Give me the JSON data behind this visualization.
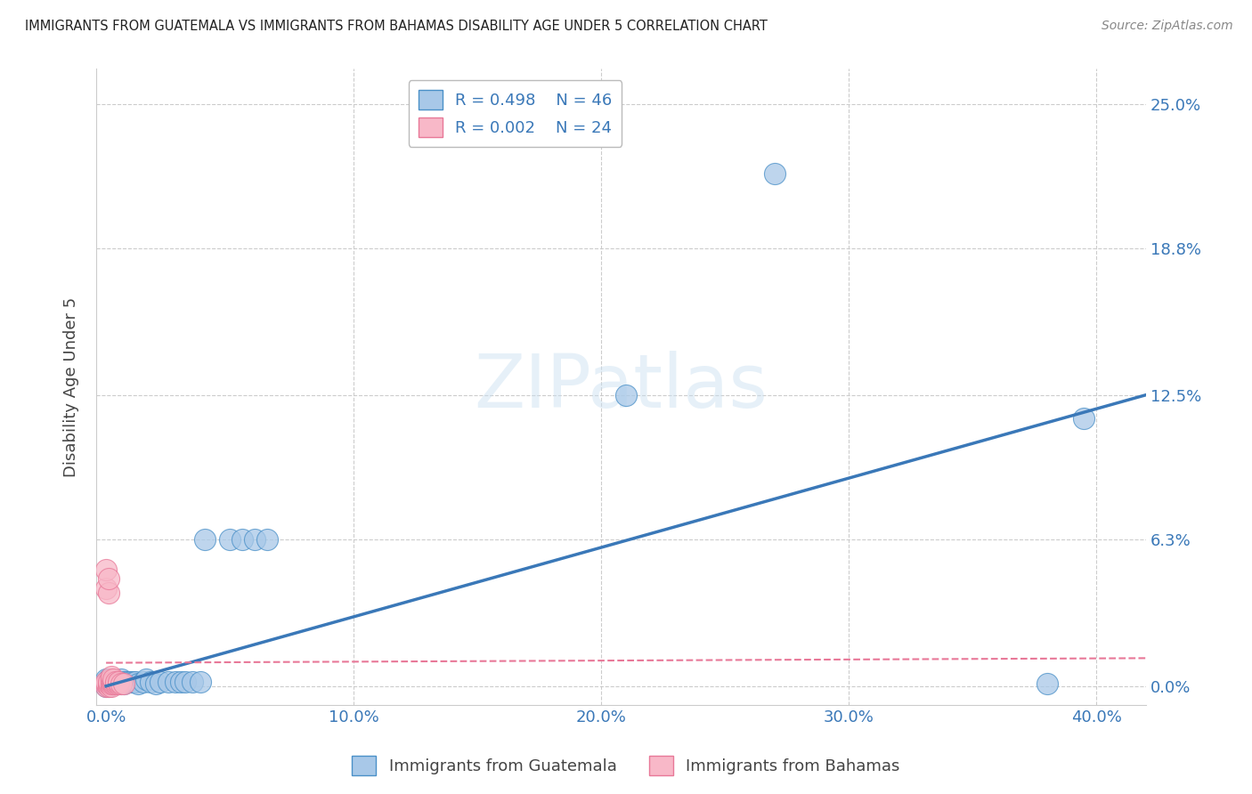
{
  "title": "IMMIGRANTS FROM GUATEMALA VS IMMIGRANTS FROM BAHAMAS DISABILITY AGE UNDER 5 CORRELATION CHART",
  "source": "Source: ZipAtlas.com",
  "xlabel_ticks": [
    "0.0%",
    "10.0%",
    "20.0%",
    "30.0%",
    "40.0%"
  ],
  "xlabel_tick_vals": [
    0.0,
    0.1,
    0.2,
    0.3,
    0.4
  ],
  "ylabel": "Disability Age Under 5",
  "ylabel_ticks": [
    "0.0%",
    "6.3%",
    "12.5%",
    "18.8%",
    "25.0%"
  ],
  "ylabel_tick_vals": [
    0.0,
    0.063,
    0.125,
    0.188,
    0.25
  ],
  "xlim": [
    -0.004,
    0.42
  ],
  "ylim": [
    -0.008,
    0.265
  ],
  "legend_r_blue": "R = 0.498",
  "legend_n_blue": "N = 46",
  "legend_r_pink": "R = 0.002",
  "legend_n_pink": "N = 24",
  "color_blue": "#a8c8e8",
  "color_blue_dark": "#4a90c8",
  "color_blue_line": "#3a78b8",
  "color_pink": "#f8b8c8",
  "color_pink_dark": "#e87898",
  "color_pink_line": "#e87898",
  "watermark": "ZIPatlas",
  "guatemala_x": [
    0.0,
    0.0,
    0.0,
    0.0,
    0.001,
    0.001,
    0.001,
    0.002,
    0.002,
    0.002,
    0.003,
    0.003,
    0.004,
    0.004,
    0.005,
    0.005,
    0.006,
    0.006,
    0.007,
    0.007,
    0.008,
    0.009,
    0.01,
    0.011,
    0.012,
    0.013,
    0.015,
    0.016,
    0.018,
    0.02,
    0.022,
    0.025,
    0.028,
    0.03,
    0.032,
    0.035,
    0.038,
    0.04,
    0.05,
    0.055,
    0.06,
    0.065,
    0.21,
    0.27,
    0.38,
    0.395
  ],
  "guatemala_y": [
    0.0,
    0.001,
    0.002,
    0.003,
    0.0,
    0.001,
    0.003,
    0.001,
    0.002,
    0.003,
    0.001,
    0.002,
    0.001,
    0.002,
    0.001,
    0.002,
    0.001,
    0.003,
    0.001,
    0.002,
    0.002,
    0.002,
    0.002,
    0.002,
    0.002,
    0.001,
    0.002,
    0.003,
    0.002,
    0.001,
    0.002,
    0.002,
    0.002,
    0.002,
    0.002,
    0.002,
    0.002,
    0.063,
    0.063,
    0.063,
    0.063,
    0.063,
    0.125,
    0.22,
    0.001,
    0.115
  ],
  "bahamas_x": [
    0.0,
    0.0,
    0.0,
    0.0,
    0.0,
    0.001,
    0.001,
    0.001,
    0.001,
    0.001,
    0.002,
    0.002,
    0.002,
    0.002,
    0.002,
    0.003,
    0.003,
    0.003,
    0.004,
    0.004,
    0.005,
    0.005,
    0.006,
    0.007
  ],
  "bahamas_y": [
    0.0,
    0.001,
    0.002,
    0.042,
    0.05,
    0.0,
    0.001,
    0.002,
    0.04,
    0.046,
    0.0,
    0.001,
    0.002,
    0.003,
    0.004,
    0.001,
    0.002,
    0.003,
    0.001,
    0.002,
    0.001,
    0.002,
    0.001,
    0.001
  ],
  "blue_trendline_x": [
    0.0,
    0.42
  ],
  "blue_trendline_y": [
    0.0,
    0.125
  ],
  "pink_trendline_x": [
    0.0,
    0.42
  ],
  "pink_trendline_y": [
    0.01,
    0.012
  ]
}
